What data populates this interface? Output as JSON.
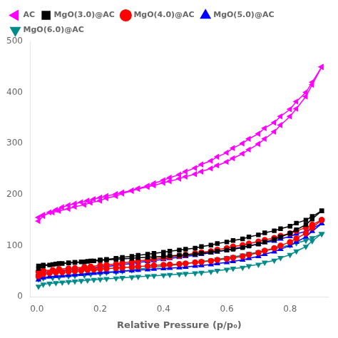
{
  "chart_data": {
    "type": "line",
    "xlabel": "Relative Pressure (p/p₀)",
    "xlim": [
      -0.02,
      0.92
    ],
    "xticks": [
      {
        "value": 0,
        "label": "0.0"
      },
      0.2,
      0.4,
      0.6,
      0.8
    ],
    "ylim": [
      0,
      500
    ],
    "yticks": [
      0,
      100,
      200,
      300,
      400,
      500
    ],
    "grid": false,
    "legend": "upper left",
    "series": [
      {
        "name": "AC",
        "color": "#FF00FF",
        "marker": "triangle-left",
        "x": [
          0.005,
          0.02,
          0.04,
          0.06,
          0.08,
          0.1,
          0.12,
          0.14,
          0.16,
          0.18,
          0.2,
          0.22,
          0.25,
          0.27,
          0.3,
          0.32,
          0.35,
          0.37,
          0.4,
          0.42,
          0.45,
          0.47,
          0.5,
          0.52,
          0.55,
          0.57,
          0.6,
          0.62,
          0.65,
          0.67,
          0.7,
          0.72,
          0.75,
          0.77,
          0.8,
          0.82,
          0.85,
          0.87,
          0.9
        ],
        "values": [
          148,
          158,
          165,
          170,
          175,
          179,
          182,
          185,
          188,
          191,
          194,
          197,
          201,
          204,
          208,
          211,
          215,
          218,
          223,
          226,
          231,
          235,
          240,
          245,
          251,
          257,
          264,
          271,
          280,
          288,
          299,
          309,
          323,
          336,
          353,
          368,
          392,
          415,
          450
        ]
      },
      {
        "color": "#FF00FF",
        "marker": "triangle-left",
        "x": [
          0.9,
          0.87,
          0.85,
          0.82,
          0.8,
          0.77,
          0.75,
          0.72,
          0.7,
          0.67,
          0.65,
          0.62,
          0.6,
          0.57,
          0.55,
          0.52,
          0.5,
          0.47,
          0.45,
          0.42,
          0.4,
          0.37,
          0.35,
          0.32,
          0.3,
          0.27,
          0.25,
          0.22,
          0.2,
          0.17,
          0.15,
          0.12,
          0.1,
          0.07,
          0.05,
          0.02,
          0.005
        ],
        "values": [
          450,
          420,
          400,
          382,
          367,
          353,
          341,
          330,
          319,
          309,
          300,
          291,
          282,
          274,
          266,
          259,
          252,
          245,
          239,
          233,
          228,
          222,
          217,
          212,
          207,
          202,
          197,
          193,
          188,
          184,
          180,
          176,
          172,
          168,
          165,
          160,
          155
        ]
      },
      {
        "name": "MgO(3.0)@AC",
        "color": "#000000",
        "marker": "square",
        "x": [
          0.005,
          0.02,
          0.04,
          0.06,
          0.08,
          0.1,
          0.12,
          0.14,
          0.16,
          0.18,
          0.2,
          0.22,
          0.25,
          0.27,
          0.3,
          0.32,
          0.35,
          0.37,
          0.4,
          0.42,
          0.45,
          0.47,
          0.5,
          0.52,
          0.55,
          0.57,
          0.6,
          0.62,
          0.65,
          0.67,
          0.7,
          0.72,
          0.75,
          0.77,
          0.8,
          0.82,
          0.85,
          0.87,
          0.9
        ],
        "values": [
          55,
          60,
          62,
          64,
          65,
          66,
          67,
          68,
          69,
          70,
          71,
          72,
          73,
          74,
          75,
          76,
          77,
          78,
          79,
          80,
          81,
          82,
          83,
          85,
          87,
          89,
          91,
          93,
          96,
          99,
          103,
          107,
          112,
          117,
          124,
          131,
          141,
          152,
          168
        ]
      },
      {
        "color": "#000000",
        "marker": "square",
        "x": [
          0.9,
          0.87,
          0.85,
          0.82,
          0.8,
          0.77,
          0.75,
          0.72,
          0.7,
          0.67,
          0.65,
          0.62,
          0.6,
          0.57,
          0.55,
          0.52,
          0.5,
          0.47,
          0.45,
          0.42,
          0.4,
          0.37,
          0.35,
          0.32,
          0.3,
          0.27,
          0.25,
          0.22,
          0.2,
          0.17,
          0.15,
          0.12,
          0.1,
          0.07,
          0.05,
          0.02,
          0.005
        ],
        "values": [
          168,
          157,
          150,
          144,
          138,
          133,
          129,
          125,
          121,
          117,
          113,
          110,
          107,
          104,
          101,
          98,
          95,
          93,
          91,
          89,
          87,
          85,
          83,
          81,
          79,
          77,
          75,
          73,
          72,
          70,
          68,
          67,
          66,
          65,
          63,
          62,
          60
        ]
      },
      {
        "name": "MgO(4.0)@AC",
        "color": "#FF0000",
        "marker": "circle",
        "x": [
          0.005,
          0.02,
          0.04,
          0.06,
          0.08,
          0.1,
          0.12,
          0.14,
          0.16,
          0.18,
          0.2,
          0.22,
          0.25,
          0.27,
          0.3,
          0.32,
          0.35,
          0.37,
          0.4,
          0.42,
          0.45,
          0.47,
          0.5,
          0.52,
          0.55,
          0.57,
          0.6,
          0.62,
          0.65,
          0.67,
          0.7,
          0.72,
          0.75,
          0.77,
          0.8,
          0.82,
          0.85,
          0.87,
          0.9
        ],
        "values": [
          40,
          44,
          46,
          47,
          48,
          49,
          50,
          51,
          52,
          53,
          54,
          55,
          56,
          57,
          58,
          59,
          60,
          61,
          62,
          63,
          64,
          65,
          67,
          68,
          70,
          72,
          74,
          76,
          79,
          82,
          86,
          90,
          95,
          100,
          107,
          114,
          124,
          135,
          150
        ]
      },
      {
        "color": "#FF0000",
        "marker": "circle",
        "x": [
          0.9,
          0.87,
          0.85,
          0.82,
          0.8,
          0.77,
          0.75,
          0.72,
          0.7,
          0.67,
          0.65,
          0.62,
          0.6,
          0.57,
          0.55,
          0.52,
          0.5,
          0.47,
          0.45,
          0.42,
          0.4,
          0.37,
          0.35,
          0.32,
          0.3,
          0.27,
          0.25,
          0.22,
          0.2,
          0.17,
          0.15,
          0.12,
          0.1,
          0.07,
          0.05,
          0.02,
          0.005
        ],
        "values": [
          150,
          141,
          135,
          129,
          124,
          119,
          115,
          111,
          108,
          104,
          101,
          98,
          95,
          92,
          89,
          87,
          85,
          82,
          80,
          78,
          76,
          74,
          72,
          70,
          68,
          66,
          64,
          62,
          61,
          59,
          58,
          56,
          55,
          54,
          52,
          51,
          49
        ]
      },
      {
        "name": "MgO(5.0)@AC",
        "color": "#0000FF",
        "marker": "triangle-up",
        "x": [
          0.005,
          0.02,
          0.04,
          0.06,
          0.08,
          0.1,
          0.12,
          0.14,
          0.16,
          0.18,
          0.2,
          0.22,
          0.25,
          0.27,
          0.3,
          0.32,
          0.35,
          0.37,
          0.4,
          0.42,
          0.45,
          0.47,
          0.5,
          0.52,
          0.55,
          0.57,
          0.6,
          0.62,
          0.65,
          0.67,
          0.7,
          0.72,
          0.75,
          0.77,
          0.8,
          0.82,
          0.85,
          0.87,
          0.9
        ],
        "values": [
          33,
          37,
          39,
          40,
          41,
          42,
          43,
          44,
          45,
          46,
          47,
          48,
          49,
          50,
          51,
          52,
          53,
          54,
          55,
          56,
          57,
          58,
          60,
          61,
          63,
          65,
          67,
          69,
          72,
          75,
          79,
          83,
          88,
          93,
          100,
          107,
          117,
          128,
          143
        ]
      },
      {
        "color": "#0000FF",
        "marker": "triangle-up",
        "x": [
          0.9,
          0.87,
          0.85,
          0.82,
          0.8,
          0.77,
          0.75,
          0.72,
          0.7,
          0.67,
          0.65,
          0.62,
          0.6,
          0.57,
          0.55,
          0.52,
          0.5,
          0.47,
          0.45,
          0.42,
          0.4,
          0.37,
          0.35,
          0.32,
          0.3,
          0.27,
          0.25,
          0.22,
          0.2,
          0.17,
          0.15,
          0.12,
          0.1,
          0.07,
          0.05,
          0.02,
          0.005
        ],
        "values": [
          143,
          134,
          128,
          123,
          118,
          113,
          109,
          106,
          103,
          100,
          97,
          94,
          91,
          88,
          86,
          83,
          81,
          79,
          77,
          75,
          73,
          71,
          69,
          67,
          65,
          63,
          61,
          59,
          58,
          56,
          55,
          53,
          52,
          51,
          49,
          48,
          46
        ]
      },
      {
        "name": "MgO(6.0)@AC",
        "color": "#008B8B",
        "marker": "triangle-down",
        "x": [
          0.005,
          0.02,
          0.04,
          0.06,
          0.08,
          0.1,
          0.12,
          0.14,
          0.16,
          0.18,
          0.2,
          0.22,
          0.25,
          0.27,
          0.3,
          0.32,
          0.35,
          0.37,
          0.4,
          0.42,
          0.45,
          0.47,
          0.5,
          0.52,
          0.55,
          0.57,
          0.6,
          0.62,
          0.65,
          0.67,
          0.7,
          0.72,
          0.75,
          0.77,
          0.8,
          0.82,
          0.85,
          0.87,
          0.9
        ],
        "values": [
          20,
          24,
          26,
          27,
          28,
          29,
          30,
          31,
          32,
          33,
          34,
          35,
          36,
          37,
          38,
          39,
          40,
          41,
          42,
          43,
          44,
          45,
          46,
          47,
          49,
          51,
          53,
          55,
          57,
          60,
          63,
          67,
          71,
          76,
          82,
          89,
          98,
          109,
          123
        ]
      },
      {
        "color": "#008B8B",
        "marker": "triangle-down",
        "x": [
          0.9,
          0.87,
          0.85,
          0.82,
          0.8,
          0.77,
          0.75,
          0.72,
          0.7,
          0.67,
          0.65,
          0.62,
          0.6,
          0.57,
          0.55,
          0.52,
          0.5,
          0.47,
          0.45,
          0.42,
          0.4,
          0.37,
          0.35,
          0.32,
          0.3,
          0.27,
          0.25,
          0.22,
          0.2,
          0.17,
          0.15,
          0.12,
          0.1,
          0.07,
          0.05,
          0.02,
          0.005
        ],
        "values": [
          123,
          115,
          110,
          105,
          101,
          97,
          93,
          90,
          87,
          84,
          81,
          78,
          76,
          73,
          71,
          69,
          67,
          65,
          63,
          61,
          59,
          58,
          56,
          54,
          52,
          50,
          48,
          47,
          45,
          44,
          42,
          41,
          40,
          38,
          37,
          36,
          34
        ]
      }
    ]
  }
}
